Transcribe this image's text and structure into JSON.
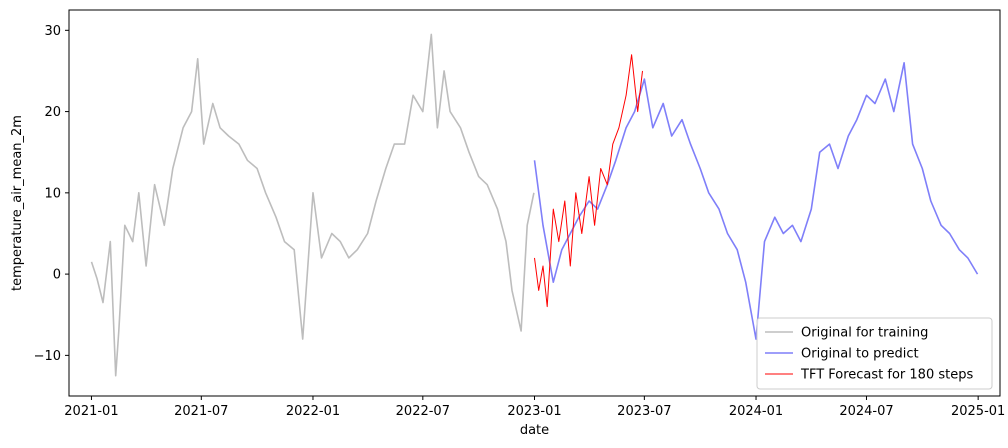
{
  "chart_data": {
    "type": "line",
    "title": "",
    "xlabel": "date",
    "ylabel": "temperature_air_mean_2m",
    "xlim": [
      "2020-11-25",
      "2025-02-06"
    ],
    "ylim": [
      -15,
      32.5
    ],
    "x_ticks": [
      "2021-01",
      "2021-07",
      "2022-01",
      "2022-07",
      "2023-01",
      "2023-07",
      "2024-01",
      "2024-07",
      "2025-01"
    ],
    "y_ticks": [
      -10,
      0,
      10,
      20,
      30
    ],
    "grid": false,
    "legend": "lower-right",
    "series": [
      {
        "name": "Original for training",
        "color": "#bdbdbd",
        "x": [
          "2021-01-01",
          "2021-01-10",
          "2021-01-20",
          "2021-02-01",
          "2021-02-10",
          "2021-02-15",
          "2021-02-25",
          "2021-03-10",
          "2021-03-20",
          "2021-04-01",
          "2021-04-15",
          "2021-05-01",
          "2021-05-15",
          "2021-06-01",
          "2021-06-15",
          "2021-06-25",
          "2021-07-05",
          "2021-07-20",
          "2021-08-01",
          "2021-08-15",
          "2021-09-01",
          "2021-09-15",
          "2021-10-01",
          "2021-10-15",
          "2021-11-01",
          "2021-11-15",
          "2021-12-01",
          "2021-12-15",
          "2022-01-01",
          "2022-01-15",
          "2022-02-01",
          "2022-02-15",
          "2022-03-01",
          "2022-03-15",
          "2022-04-01",
          "2022-04-15",
          "2022-05-01",
          "2022-05-15",
          "2022-06-01",
          "2022-06-15",
          "2022-07-01",
          "2022-07-15",
          "2022-07-25",
          "2022-08-05",
          "2022-08-15",
          "2022-09-01",
          "2022-09-15",
          "2022-10-01",
          "2022-10-15",
          "2022-11-01",
          "2022-11-15",
          "2022-11-25",
          "2022-12-10",
          "2022-12-20",
          "2022-12-31"
        ],
        "values": [
          1.5,
          -0.5,
          -3.5,
          4,
          -12.5,
          -7,
          6,
          4,
          10,
          1,
          11,
          6,
          13,
          18,
          20,
          26.5,
          16,
          21,
          18,
          17,
          16,
          14,
          13,
          10,
          7,
          4,
          3,
          -8,
          10,
          2,
          5,
          4,
          2,
          3,
          5,
          9,
          13,
          16,
          16,
          22,
          20,
          29.5,
          18,
          25,
          20,
          18,
          15,
          12,
          11,
          8,
          4,
          -2,
          -7,
          6,
          10
        ]
      },
      {
        "name": "Original to predict",
        "color": "#7f7ff9",
        "x": [
          "2023-01-01",
          "2023-01-15",
          "2023-02-01",
          "2023-02-15",
          "2023-03-01",
          "2023-03-15",
          "2023-04-01",
          "2023-04-15",
          "2023-05-01",
          "2023-05-15",
          "2023-06-01",
          "2023-06-15",
          "2023-07-01",
          "2023-07-15",
          "2023-08-01",
          "2023-08-15",
          "2023-09-01",
          "2023-09-15",
          "2023-10-01",
          "2023-10-15",
          "2023-11-01",
          "2023-11-15",
          "2023-12-01",
          "2023-12-15",
          "2024-01-01",
          "2024-01-15",
          "2024-02-01",
          "2024-02-15",
          "2024-03-01",
          "2024-03-15",
          "2024-04-01",
          "2024-04-15",
          "2024-05-01",
          "2024-05-15",
          "2024-06-01",
          "2024-06-15",
          "2024-07-01",
          "2024-07-15",
          "2024-08-01",
          "2024-08-15",
          "2024-09-01",
          "2024-09-15",
          "2024-10-01",
          "2024-10-15",
          "2024-11-01",
          "2024-11-15",
          "2024-12-01",
          "2024-12-15",
          "2024-12-31"
        ],
        "values": [
          14,
          6,
          -1,
          3,
          5,
          7,
          9,
          8,
          11,
          14,
          18,
          20,
          24,
          18,
          21,
          17,
          19,
          16,
          13,
          10,
          8,
          5,
          3,
          -1,
          -8,
          4,
          7,
          5,
          6,
          4,
          8,
          15,
          16,
          13,
          17,
          19,
          22,
          21,
          24,
          20,
          26,
          16,
          13,
          9,
          6,
          5,
          3,
          2,
          0
        ]
      },
      {
        "name": "TFT Forecast for 180 steps",
        "color": "#ff0000",
        "x": [
          "2023-01-01",
          "2023-01-08",
          "2023-01-15",
          "2023-01-22",
          "2023-02-01",
          "2023-02-10",
          "2023-02-20",
          "2023-03-01",
          "2023-03-10",
          "2023-03-20",
          "2023-04-01",
          "2023-04-10",
          "2023-04-20",
          "2023-05-01",
          "2023-05-10",
          "2023-05-20",
          "2023-06-01",
          "2023-06-10",
          "2023-06-20",
          "2023-06-28"
        ],
        "values": [
          2,
          -2,
          1,
          -4,
          8,
          4,
          9,
          1,
          10,
          5,
          12,
          6,
          13,
          11,
          16,
          18,
          22,
          27,
          20,
          25
        ]
      }
    ]
  }
}
